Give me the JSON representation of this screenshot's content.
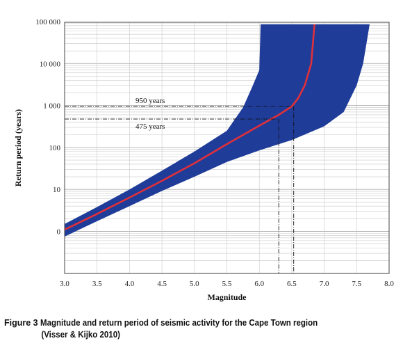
{
  "chart_data": {
    "type": "line",
    "xlabel": "Magnitude",
    "ylabel": "Return period (years)",
    "xlim": [
      3.0,
      8.0
    ],
    "x_ticks": [
      "3.0",
      "3.5",
      "4.0",
      "4.5",
      "5.0",
      "5.5",
      "6.0",
      "6.5",
      "7.0",
      "7.5",
      "8.0"
    ],
    "y_ticks": [
      "100 000",
      "10 000",
      "1 000",
      "100",
      "10",
      "0"
    ],
    "y_scale": "log",
    "grid": true,
    "colors": {
      "band": "#1f3c99",
      "line": "#e0303a",
      "grid": "#c8c8c8"
    },
    "series": [
      {
        "values": [
          [
            3.0,
            1.1
          ],
          [
            3.5,
            2.6
          ],
          [
            4.0,
            6.4
          ],
          [
            4.5,
            16
          ],
          [
            5.0,
            42
          ],
          [
            5.5,
            120
          ],
          [
            6.0,
            330
          ],
          [
            6.3,
            600
          ],
          [
            6.5,
            950
          ],
          [
            6.6,
            1500
          ],
          [
            6.7,
            3000
          ],
          [
            6.8,
            10000
          ],
          [
            6.85,
            100000
          ]
        ]
      }
    ],
    "band": {
      "upper": [
        [
          3.0,
          1.5
        ],
        [
          3.5,
          3.8
        ],
        [
          4.0,
          10
        ],
        [
          4.5,
          28
        ],
        [
          5.0,
          80
        ],
        [
          5.5,
          250
        ],
        [
          5.75,
          900
        ],
        [
          5.9,
          3000
        ],
        [
          6.0,
          7000
        ],
        [
          6.02,
          100000
        ]
      ],
      "lower": [
        [
          3.0,
          0.75
        ],
        [
          3.5,
          1.75
        ],
        [
          4.0,
          4
        ],
        [
          4.5,
          9.2
        ],
        [
          5.0,
          20
        ],
        [
          5.5,
          45
        ],
        [
          6.0,
          85
        ],
        [
          6.5,
          150
        ],
        [
          7.0,
          320
        ],
        [
          7.3,
          700
        ],
        [
          7.5,
          3000
        ],
        [
          7.6,
          10000
        ],
        [
          7.7,
          100000
        ]
      ]
    },
    "annotations": [
      {
        "label": "950 years",
        "y": 950,
        "x": 6.53
      },
      {
        "label": "475 years",
        "y": 475,
        "x": 6.3
      }
    ]
  },
  "caption": {
    "figure_label": "Figure 3",
    "title": "Magnitude and return period of seismic activity for the Cape Town region",
    "source": "(Visser & Kijko 2010)"
  }
}
